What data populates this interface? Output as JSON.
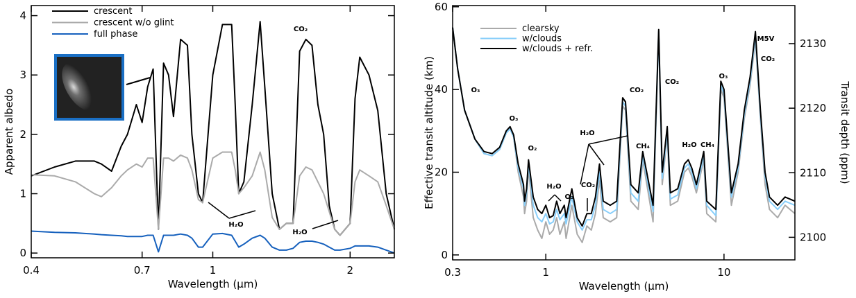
{
  "chart_data": [
    {
      "type": "line",
      "x_label": "Wavelength (μm)",
      "y_label": "Apparent albedo",
      "xscale": "log",
      "xlim": [
        0.4,
        2.5
      ],
      "xticks": [
        0.4,
        0.7,
        1,
        2
      ],
      "ylim": [
        -0.08,
        4.17
      ],
      "yticks": [
        0,
        1,
        2,
        3,
        4
      ],
      "legend": "upper left",
      "grid": false,
      "x": [
        0.4,
        0.45,
        0.5,
        0.55,
        0.57,
        0.6,
        0.63,
        0.65,
        0.68,
        0.7,
        0.72,
        0.74,
        0.76,
        0.78,
        0.8,
        0.82,
        0.85,
        0.88,
        0.9,
        0.93,
        0.95,
        1.0,
        1.05,
        1.1,
        1.12,
        1.14,
        1.17,
        1.22,
        1.27,
        1.3,
        1.35,
        1.4,
        1.45,
        1.5,
        1.55,
        1.6,
        1.65,
        1.7,
        1.75,
        1.8,
        1.85,
        1.9,
        2.0,
        2.05,
        2.1,
        2.2,
        2.3,
        2.4,
        2.5
      ],
      "series": [
        {
          "name": "crescent",
          "color": "#000000",
          "values": [
            1.3,
            1.45,
            1.55,
            1.55,
            1.5,
            1.38,
            1.8,
            2.0,
            2.5,
            2.2,
            2.8,
            3.1,
            0.4,
            3.2,
            3.0,
            2.3,
            3.6,
            3.5,
            2.0,
            1.0,
            0.85,
            3.0,
            3.85,
            3.85,
            2.5,
            1.0,
            1.2,
            2.5,
            3.9,
            2.8,
            1.0,
            0.4,
            0.5,
            0.5,
            3.4,
            3.6,
            3.5,
            2.5,
            2.0,
            0.8,
            0.4,
            0.3,
            0.5,
            2.6,
            3.3,
            3.0,
            2.4,
            1.0,
            0.4
          ]
        },
        {
          "name": "crescent w/o glint",
          "color": "#aaaaaa",
          "values": [
            1.32,
            1.3,
            1.2,
            1.0,
            0.95,
            1.1,
            1.3,
            1.4,
            1.5,
            1.45,
            1.6,
            1.6,
            0.4,
            1.6,
            1.6,
            1.55,
            1.65,
            1.6,
            1.4,
            0.9,
            0.85,
            1.6,
            1.7,
            1.7,
            1.4,
            1.0,
            1.1,
            1.3,
            1.7,
            1.4,
            0.6,
            0.4,
            0.5,
            0.5,
            1.3,
            1.45,
            1.4,
            1.2,
            1.0,
            0.7,
            0.4,
            0.3,
            0.5,
            1.2,
            1.4,
            1.3,
            1.2,
            0.8,
            0.4
          ]
        },
        {
          "name": "full phase",
          "color": "#1560bd",
          "values": [
            0.37,
            0.35,
            0.34,
            0.32,
            0.31,
            0.3,
            0.29,
            0.28,
            0.28,
            0.28,
            0.3,
            0.3,
            0.02,
            0.3,
            0.3,
            0.3,
            0.32,
            0.3,
            0.25,
            0.1,
            0.1,
            0.32,
            0.33,
            0.3,
            0.2,
            0.1,
            0.15,
            0.25,
            0.3,
            0.25,
            0.1,
            0.05,
            0.05,
            0.08,
            0.18,
            0.2,
            0.2,
            0.18,
            0.15,
            0.1,
            0.05,
            0.05,
            0.08,
            0.12,
            0.12,
            0.12,
            0.1,
            0.05,
            0.0
          ]
        }
      ],
      "annotations": [
        "CO₂",
        "H₂O",
        "H₂O"
      ]
    },
    {
      "type": "line",
      "x_label": "Wavelength (μm)",
      "y_label": "Effective transit altitude (km)",
      "y2_label": "Transit depth (ppm)",
      "xscale": "log",
      "xlim": [
        0.3,
        25
      ],
      "xticks": [
        0.3,
        1,
        10
      ],
      "ylim": [
        -1.2,
        60.3
      ],
      "yticks": [
        0,
        20,
        40,
        60
      ],
      "y2lim": [
        2096.5,
        2135.9
      ],
      "y2ticks": [
        2100,
        2110,
        2120,
        2130
      ],
      "legend": "upper left",
      "grid": false,
      "x": [
        0.3,
        0.32,
        0.35,
        0.4,
        0.45,
        0.5,
        0.55,
        0.6,
        0.63,
        0.66,
        0.7,
        0.75,
        0.76,
        0.78,
        0.8,
        0.85,
        0.9,
        0.95,
        1.0,
        1.05,
        1.1,
        1.15,
        1.2,
        1.27,
        1.3,
        1.4,
        1.5,
        1.6,
        1.7,
        1.8,
        1.9,
        2.0,
        2.1,
        2.3,
        2.5,
        2.7,
        2.8,
        3.0,
        3.3,
        3.5,
        4.0,
        4.3,
        4.5,
        4.8,
        5.0,
        5.5,
        6.0,
        6.3,
        6.6,
        7.0,
        7.7,
        8.0,
        9.0,
        9.6,
        10,
        11,
        12,
        13,
        14,
        15,
        16,
        17,
        18,
        20,
        22,
        25
      ],
      "series": [
        {
          "name": "clearsky",
          "color": "#aaaaaa",
          "values": [
            55,
            45,
            35,
            28,
            24.5,
            24,
            25.5,
            29.5,
            30.5,
            28.5,
            20,
            14,
            10,
            13,
            21,
            9,
            6,
            4,
            8,
            5,
            6,
            9,
            5,
            8,
            4,
            12,
            5,
            3,
            7,
            6,
            10,
            18,
            9,
            8,
            9,
            36,
            35,
            13,
            11,
            23,
            8,
            54,
            17,
            29,
            12,
            13,
            20,
            21,
            19,
            15,
            23,
            10,
            8,
            40,
            38,
            12,
            20,
            33,
            41,
            52,
            33,
            17,
            11,
            9,
            12,
            10
          ]
        },
        {
          "name": "w/clouds",
          "color": "#87cefa",
          "values": [
            55,
            45,
            35,
            28,
            24.5,
            24,
            25.5,
            29.5,
            30.5,
            28.5,
            21,
            16,
            12,
            15,
            22,
            12,
            9,
            8,
            10,
            7.5,
            8,
            11,
            8.5,
            10,
            7.5,
            14,
            8,
            6,
            8.5,
            8.5,
            12,
            20,
            11,
            10,
            11,
            37,
            36,
            15,
            13,
            24,
            10.5,
            54,
            18.5,
            30,
            13.5,
            14.5,
            21,
            22,
            20,
            16,
            24,
            12,
            9.5,
            41,
            39,
            14,
            21,
            34,
            42,
            53,
            34,
            19,
            13,
            11,
            13,
            12
          ]
        },
        {
          "name": "w/clouds + refr.",
          "color": "#000000",
          "values": [
            55,
            45,
            35,
            28,
            25,
            24.5,
            26,
            30,
            31,
            29,
            22,
            17,
            13,
            16,
            23,
            14,
            11,
            10,
            12,
            9,
            9.5,
            13,
            10,
            12,
            9,
            16,
            9,
            7,
            10,
            10,
            14,
            22,
            13,
            12,
            13,
            38,
            37,
            17,
            15,
            25,
            12,
            54.5,
            20,
            31,
            15,
            16,
            22,
            23,
            21,
            17,
            25,
            13,
            11,
            42,
            40,
            15,
            22,
            35,
            43,
            54,
            35,
            20,
            14,
            12,
            14,
            13
          ]
        }
      ],
      "annotations": [
        "O₃",
        "O₃",
        "O₂",
        "H₂O",
        "O₂",
        "CO₂",
        "H₂O",
        "CO₂",
        "CH₄",
        "CO₂",
        "O₃",
        "H₂O",
        "CH₄",
        "CO₂",
        "M5V"
      ]
    }
  ]
}
